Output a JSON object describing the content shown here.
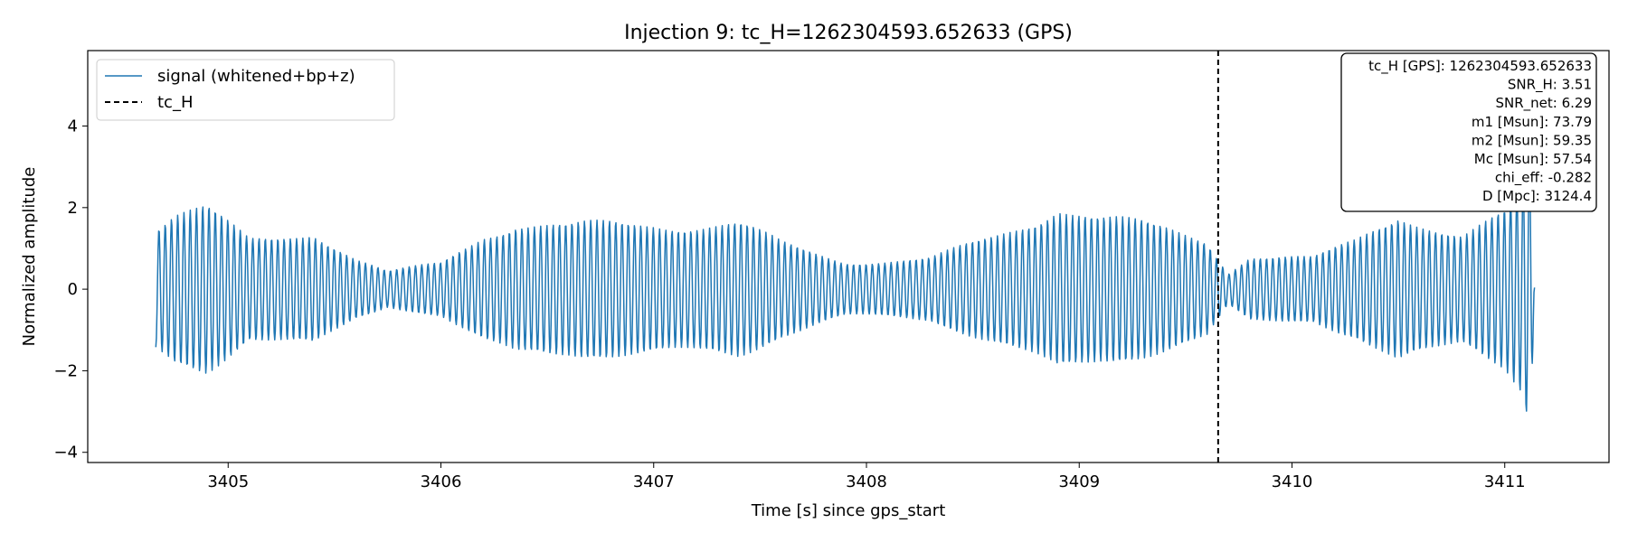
{
  "chart_data": {
    "type": "line",
    "title": "Injection 9: tc_H=1262304593.652633 (GPS)",
    "xlabel": "Time [s] since gps_start",
    "ylabel": "Normalized amplitude",
    "xlim": [
      3404.34,
      3411.49
    ],
    "ylim": [
      -4.25,
      5.85
    ],
    "xticks": [
      3405,
      3406,
      3407,
      3408,
      3409,
      3410,
      3411
    ],
    "yticks": [
      -4,
      -2,
      0,
      2,
      4
    ],
    "grid": false,
    "legend_position": "top-left",
    "series": [
      {
        "name": "signal (whitened+bp+z)",
        "color": "#1f77b4",
        "style": "solid",
        "x_start": 3404.66,
        "x_end": 3411.14,
        "samples": 2400,
        "oscillation_hz": 34,
        "envelope": {
          "t": [
            3404.66,
            3404.75,
            3404.9,
            3405.1,
            3405.4,
            3405.6,
            3405.75,
            3405.9,
            3406.0,
            3406.2,
            3406.35,
            3406.6,
            3407.0,
            3407.4,
            3407.6,
            3407.9,
            3408.3,
            3408.6,
            3408.8,
            3408.9,
            3409.1,
            3409.4,
            3409.6,
            3409.7,
            3409.8,
            3410.1,
            3410.3,
            3410.5,
            3410.8,
            3411.0,
            3411.08,
            3411.12,
            3411.14
          ],
          "amp": [
            1.7,
            2.0,
            2.1,
            1.3,
            1.6,
            0.8,
            0.45,
            0.6,
            0.7,
            1.5,
            1.8,
            1.65,
            1.8,
            1.75,
            1.2,
            0.75,
            0.8,
            1.4,
            1.95,
            2.3,
            1.9,
            1.6,
            1.35,
            0.45,
            0.9,
            0.8,
            1.3,
            2.1,
            1.4,
            1.95,
            2.6,
            3.6,
            0.1
          ]
        }
      },
      {
        "name": "tc_H",
        "color": "#000000",
        "style": "dashed",
        "x": 3409.653
      }
    ],
    "info_box": {
      "position": "top-right",
      "lines": [
        "tc_H [GPS]: 1262304593.652633",
        "SNR_H: 3.51",
        "SNR_net: 6.29",
        "m1 [Msun]: 73.79",
        "m2 [Msun]: 59.35",
        "Mc [Msun]: 57.54",
        "chi_eff: -0.282",
        "D [Mpc]: 3124.4"
      ]
    }
  }
}
